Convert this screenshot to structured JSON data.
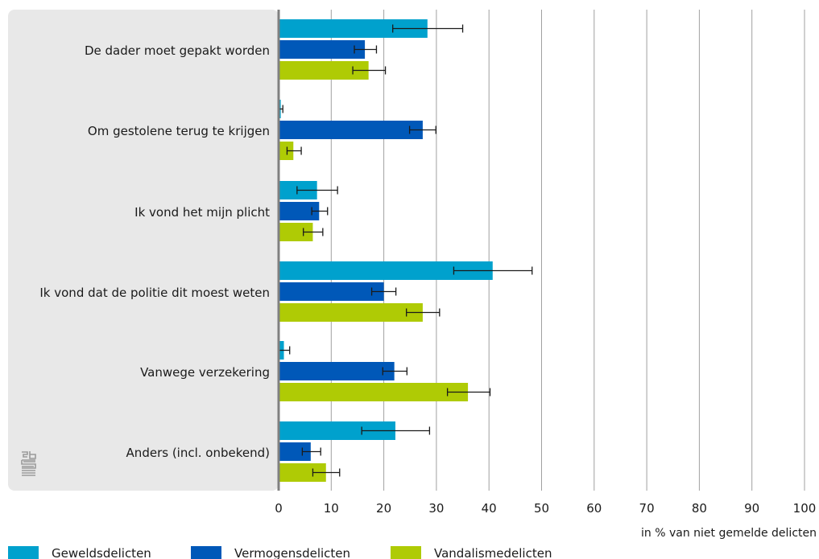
{
  "chart_data": {
    "type": "bar",
    "orientation": "horizontal",
    "categories": [
      "De dader moet gepakt worden",
      "Om gestolene terug te krijgen",
      "Ik vond het mijn plicht",
      "Ik vond dat de politie dit moest weten",
      "Vanwege verzekering",
      "Anders (incl. onbekend)"
    ],
    "series": [
      {
        "name": "Geweldsdelicten",
        "color": "#00a1cd",
        "values": [
          28.3,
          0.4,
          7.3,
          40.7,
          1.0,
          22.2
        ],
        "error_low": [
          21.7,
          0.1,
          3.5,
          33.3,
          0.0,
          15.8
        ],
        "error_high": [
          35.0,
          0.8,
          11.2,
          48.2,
          2.1,
          28.7
        ]
      },
      {
        "name": "Vermogensdelicten",
        "color": "#0058b8",
        "values": [
          16.4,
          27.4,
          7.7,
          20.0,
          22.0,
          6.1
        ],
        "error_low": [
          14.4,
          24.9,
          6.3,
          17.7,
          19.8,
          4.5
        ],
        "error_high": [
          18.6,
          29.9,
          9.3,
          22.3,
          24.4,
          8.0
        ]
      },
      {
        "name": "Vandalismedelicten",
        "color": "#afcb05",
        "values": [
          17.1,
          2.8,
          6.5,
          27.4,
          36.0,
          9.0
        ],
        "error_low": [
          14.1,
          1.6,
          4.7,
          24.3,
          32.1,
          6.5
        ],
        "error_high": [
          20.3,
          4.3,
          8.4,
          30.6,
          40.2,
          11.6
        ]
      }
    ],
    "x_ticks": [
      "0",
      "10",
      "20",
      "30",
      "40",
      "50",
      "60",
      "70",
      "80",
      "90",
      "100"
    ],
    "xlim": [
      0,
      100
    ],
    "xlabel": "in % van niet gemelde delicten",
    "title": "",
    "grid": true,
    "legend_position": "bottom"
  },
  "colors": {
    "label_panel": "#e8e8e8",
    "gridline": "#a0a0a0",
    "axis": "#808080",
    "errorbar": "#1a1a1a",
    "logo": "#9a9a9a"
  },
  "logo_icon": "cbs-logo-icon"
}
